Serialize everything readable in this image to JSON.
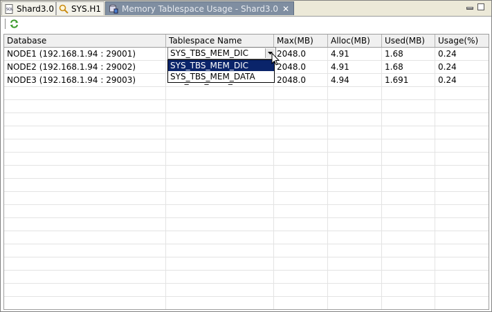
{
  "tabs": [
    {
      "label": "Shard3.0",
      "icon": "sql-file-icon"
    },
    {
      "label": "SYS.H1",
      "icon": "magnifier-icon"
    },
    {
      "label": "Memory Tablespace Usage - Shard3.0",
      "icon": "database-chart-icon",
      "close": "✕"
    }
  ],
  "table": {
    "columns": [
      "Database",
      "Tablespace Name",
      "Max(MB)",
      "Alloc(MB)",
      "Used(MB)",
      "Usage(%)"
    ],
    "rows": [
      {
        "database": "NODE1 (192.168.1.94 : 29001)",
        "tablespace": "SYS_TBS_MEM_DIC",
        "max": "2048.0",
        "alloc": "4.91",
        "used": "1.68",
        "usage": "0.24"
      },
      {
        "database": "NODE2 (192.168.1.94 : 29002)",
        "tablespace": "",
        "max": "2048.0",
        "alloc": "4.91",
        "used": "1.68",
        "usage": "0.24"
      },
      {
        "database": "NODE3 (192.168.1.94 : 29003)",
        "tablespace": "SYS_TBS_MEM_DIC",
        "max": "2048.0",
        "alloc": "4.94",
        "used": "1.691",
        "usage": "0.24"
      }
    ]
  },
  "combo": {
    "value": "SYS_TBS_MEM_DIC",
    "options": [
      "SYS_TBS_MEM_DIC",
      "SYS_TBS_MEM_DATA"
    ],
    "selected_index": 0
  },
  "colors": {
    "selection": "#0a246a",
    "active_tab": "#7f8ea1",
    "refresh_icon": "#3c9a2b"
  }
}
